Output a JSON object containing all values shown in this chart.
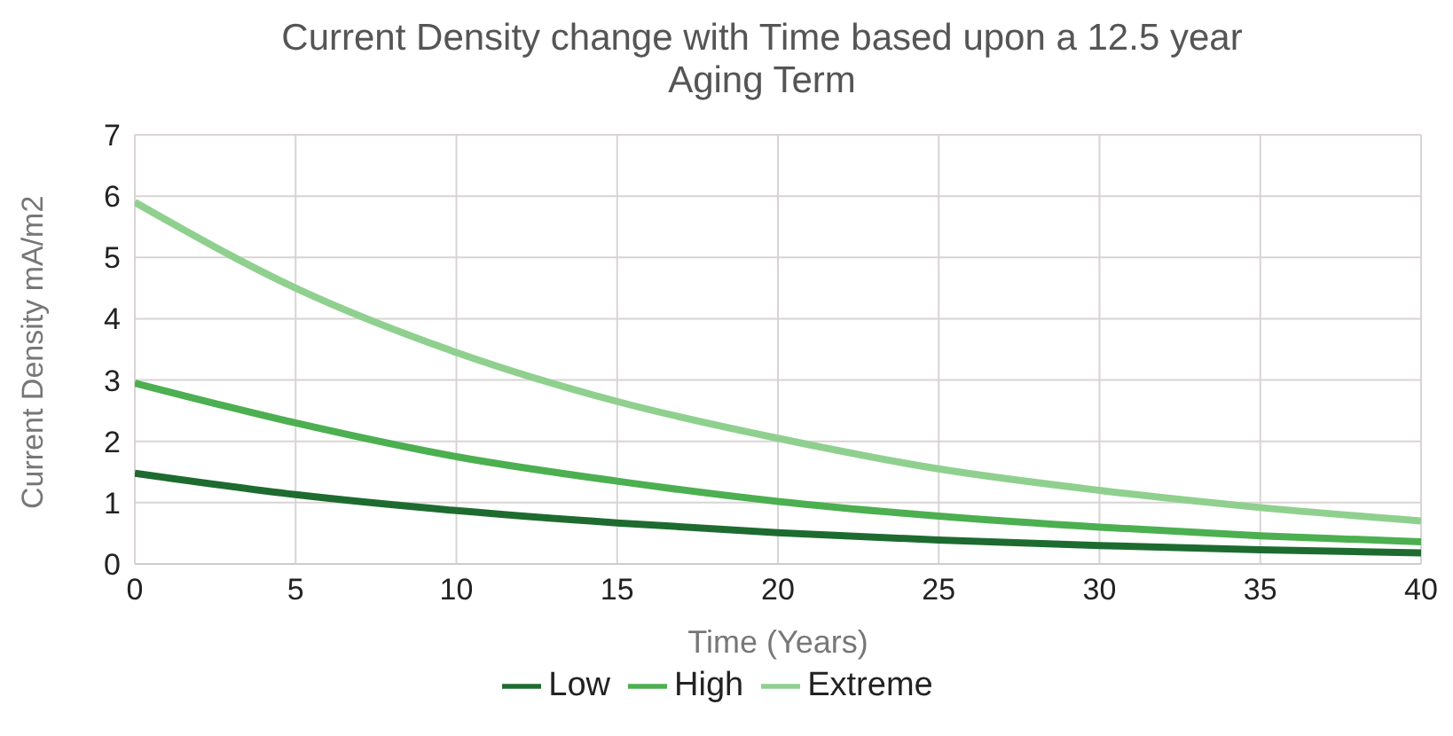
{
  "chart_data": {
    "type": "line",
    "title": "Current Density change with Time based upon a 12.5 year Aging Term",
    "xlabel": "Time (Years)",
    "ylabel": "Current Density mA/m2",
    "x": [
      0,
      5,
      10,
      15,
      20,
      25,
      30,
      35,
      40
    ],
    "series": [
      {
        "name": "Low",
        "color": "#1e6b30",
        "values": [
          1.48,
          1.13,
          0.87,
          0.67,
          0.51,
          0.39,
          0.3,
          0.23,
          0.18
        ]
      },
      {
        "name": "High",
        "color": "#4caf50",
        "values": [
          2.95,
          2.3,
          1.75,
          1.35,
          1.02,
          0.78,
          0.6,
          0.46,
          0.36
        ]
      },
      {
        "name": "Extreme",
        "color": "#8fd08f",
        "values": [
          5.9,
          4.5,
          3.45,
          2.65,
          2.05,
          1.55,
          1.2,
          0.92,
          0.7
        ]
      }
    ],
    "xlim": [
      0,
      40
    ],
    "xticks": [
      0,
      5,
      10,
      15,
      20,
      25,
      30,
      35,
      40
    ],
    "ylim": [
      0,
      7
    ],
    "yticks": [
      0,
      1,
      2,
      3,
      4,
      5,
      6,
      7
    ],
    "grid": true,
    "legend": "bottom",
    "marker": "none",
    "line_style": "solid"
  }
}
